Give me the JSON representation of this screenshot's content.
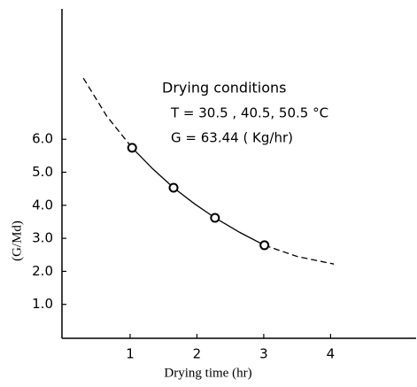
{
  "chart_data": {
    "type": "scatter",
    "xlabel": "Drying time (hr)",
    "ylabel": "(G/Md)",
    "annotations": [
      "Drying conditions",
      "T = 30.5 ,  40.5,   50.5 °C",
      "G = 63.44 ( Kg/hr)"
    ],
    "xlim": [
      0,
      5.3
    ],
    "ylim": [
      0,
      10
    ],
    "xticks": [
      1,
      2,
      3,
      4
    ],
    "yticks": [
      {
        "value": 1,
        "label": "1.0"
      },
      {
        "value": 2,
        "label": "2.0"
      },
      {
        "value": 3,
        "label": "3.0"
      },
      {
        "value": 4,
        "label": "4.0"
      },
      {
        "value": 5,
        "label": "5.0"
      },
      {
        "value": 6,
        "label": "6.0"
      }
    ],
    "color": "#000000",
    "x": [
      1.03,
      1.65,
      2.27,
      3.01
    ],
    "values": [
      5.74,
      4.53,
      3.62,
      2.79
    ],
    "curves": [
      {
        "style": "dashed",
        "x": [
          0.3,
          0.65,
          1.03
        ],
        "values": [
          7.85,
          6.7,
          5.74
        ]
      },
      {
        "style": "solid",
        "x": [
          1.03,
          1.34,
          1.65,
          1.96,
          2.27,
          2.64,
          3.01
        ],
        "values": [
          5.74,
          5.1,
          4.53,
          4.05,
          3.62,
          3.18,
          2.79
        ]
      },
      {
        "style": "dashed",
        "x": [
          3.01,
          3.5,
          4.05
        ],
        "values": [
          2.79,
          2.45,
          2.22
        ]
      }
    ]
  }
}
